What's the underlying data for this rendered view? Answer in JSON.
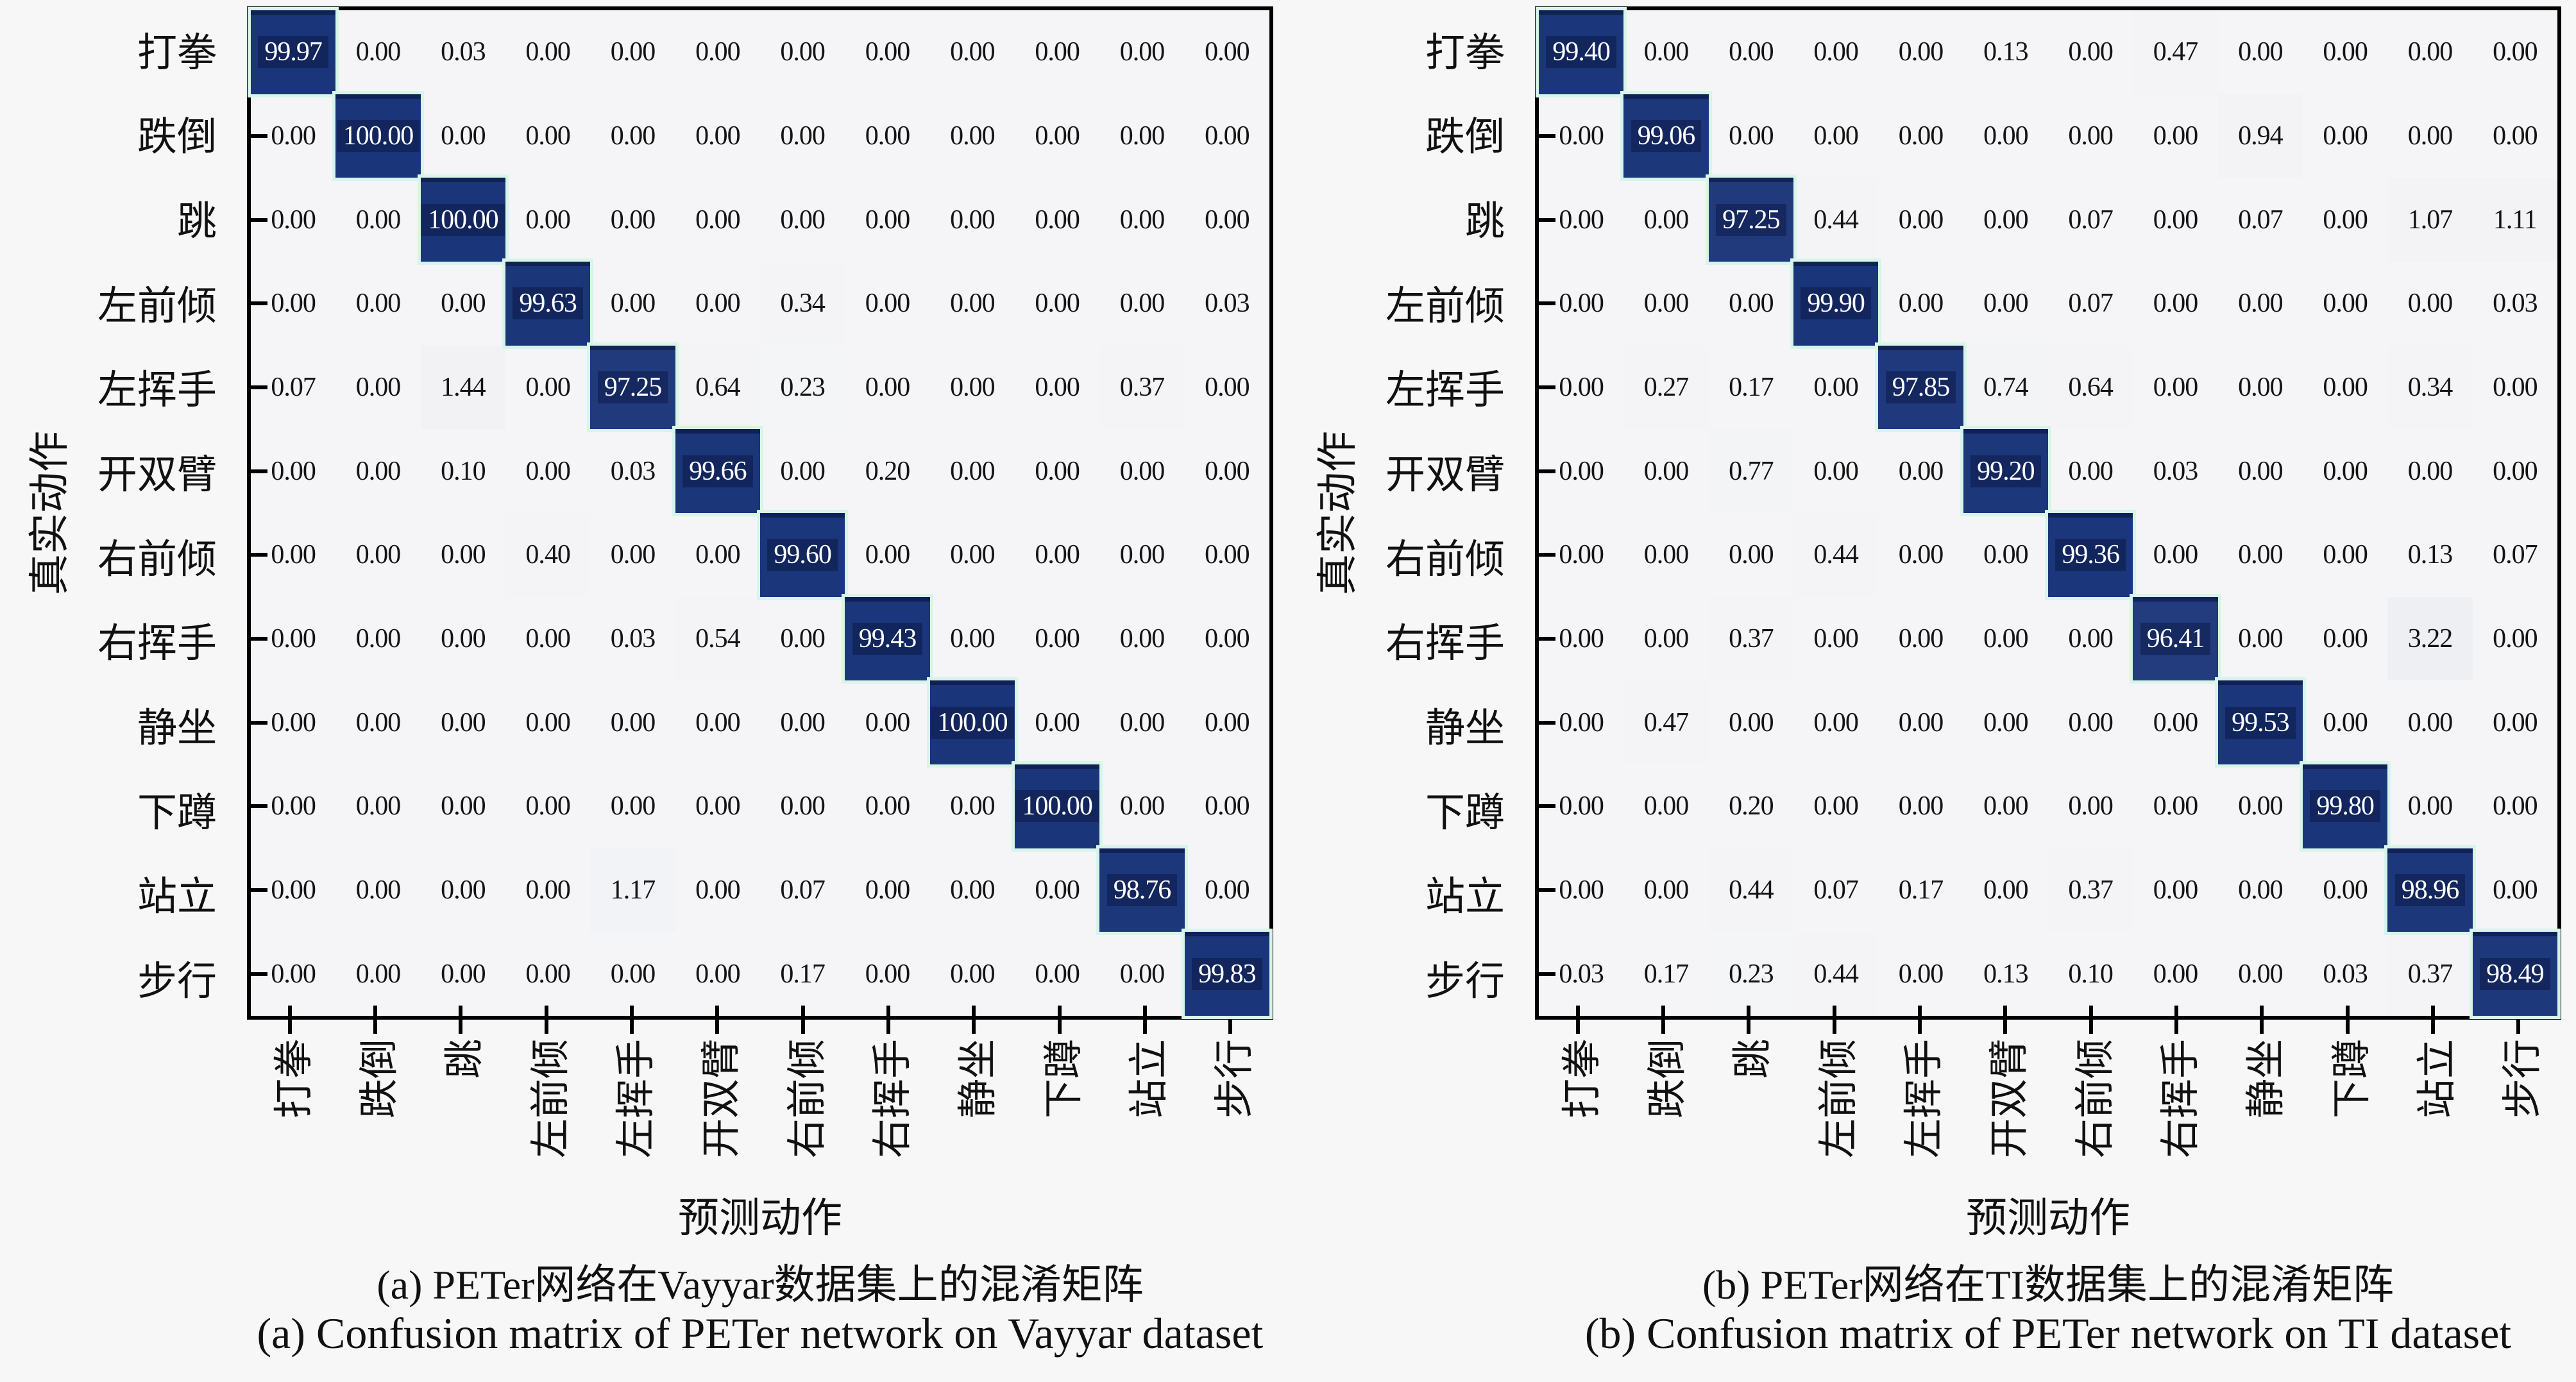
{
  "figure": {
    "type": "dual-confusion-matrix-figure",
    "background": "#f7f7f8"
  },
  "colors": {
    "diagonal_fill": "#1a3579",
    "diagonal_fill_rgb": [
      26,
      53,
      121
    ],
    "cell_background_rgb": [
      245,
      245,
      247
    ],
    "diagonal_halo": "#d7f5e9",
    "diagonal_text": "#ffffff",
    "offdiag_text": "#141414",
    "spine": "#000000"
  },
  "chart_data": [
    {
      "type": "heatmap",
      "title": "(a) PETer网络在Vayyar数据集上的混淆矩阵",
      "title_en": "(a) Confusion matrix of PETer network on Vayyar dataset",
      "xlabel": "预测动作",
      "ylabel": "真实动作",
      "legend": "none",
      "value_range": [
        0,
        100
      ],
      "categories_x": [
        "打拳",
        "跌倒",
        "跳",
        "左前倾",
        "左挥手",
        "开双臂",
        "右前倾",
        "右挥手",
        "静坐",
        "下蹲",
        "站立",
        "步行"
      ],
      "categories_y": [
        "打拳",
        "跌倒",
        "跳",
        "左前倾",
        "左挥手",
        "开双臂",
        "右前倾",
        "右挥手",
        "静坐",
        "下蹲",
        "站立",
        "步行"
      ],
      "values": [
        [
          99.97,
          0.0,
          0.03,
          0.0,
          0.0,
          0.0,
          0.0,
          0.0,
          0.0,
          0.0,
          0.0,
          0.0
        ],
        [
          0.0,
          100.0,
          0.0,
          0.0,
          0.0,
          0.0,
          0.0,
          0.0,
          0.0,
          0.0,
          0.0,
          0.0
        ],
        [
          0.0,
          0.0,
          100.0,
          0.0,
          0.0,
          0.0,
          0.0,
          0.0,
          0.0,
          0.0,
          0.0,
          0.0
        ],
        [
          0.0,
          0.0,
          0.0,
          99.63,
          0.0,
          0.0,
          0.34,
          0.0,
          0.0,
          0.0,
          0.0,
          0.03
        ],
        [
          0.07,
          0.0,
          1.44,
          0.0,
          97.25,
          0.64,
          0.23,
          0.0,
          0.0,
          0.0,
          0.37,
          0.0
        ],
        [
          0.0,
          0.0,
          0.1,
          0.0,
          0.03,
          99.66,
          0.0,
          0.2,
          0.0,
          0.0,
          0.0,
          0.0
        ],
        [
          0.0,
          0.0,
          0.0,
          0.4,
          0.0,
          0.0,
          99.6,
          0.0,
          0.0,
          0.0,
          0.0,
          0.0
        ],
        [
          0.0,
          0.0,
          0.0,
          0.0,
          0.03,
          0.54,
          0.0,
          99.43,
          0.0,
          0.0,
          0.0,
          0.0
        ],
        [
          0.0,
          0.0,
          0.0,
          0.0,
          0.0,
          0.0,
          0.0,
          0.0,
          100.0,
          0.0,
          0.0,
          0.0
        ],
        [
          0.0,
          0.0,
          0.0,
          0.0,
          0.0,
          0.0,
          0.0,
          0.0,
          0.0,
          100.0,
          0.0,
          0.0
        ],
        [
          0.0,
          0.0,
          0.0,
          0.0,
          1.17,
          0.0,
          0.07,
          0.0,
          0.0,
          0.0,
          98.76,
          0.0
        ],
        [
          0.0,
          0.0,
          0.0,
          0.0,
          0.0,
          0.0,
          0.17,
          0.0,
          0.0,
          0.0,
          0.0,
          99.83
        ]
      ]
    },
    {
      "type": "heatmap",
      "title": "(b) PETer网络在TI数据集上的混淆矩阵",
      "title_en": "(b) Confusion matrix of PETer network on TI dataset",
      "xlabel": "预测动作",
      "ylabel": "真实动作",
      "legend": "none",
      "value_range": [
        0,
        100
      ],
      "categories_x": [
        "打拳",
        "跌倒",
        "跳",
        "左前倾",
        "左挥手",
        "开双臂",
        "右前倾",
        "右挥手",
        "静坐",
        "下蹲",
        "站立",
        "步行"
      ],
      "categories_y": [
        "打拳",
        "跌倒",
        "跳",
        "左前倾",
        "左挥手",
        "开双臂",
        "右前倾",
        "右挥手",
        "静坐",
        "下蹲",
        "站立",
        "步行"
      ],
      "values": [
        [
          99.4,
          0.0,
          0.0,
          0.0,
          0.0,
          0.13,
          0.0,
          0.47,
          0.0,
          0.0,
          0.0,
          0.0
        ],
        [
          0.0,
          99.06,
          0.0,
          0.0,
          0.0,
          0.0,
          0.0,
          0.0,
          0.94,
          0.0,
          0.0,
          0.0
        ],
        [
          0.0,
          0.0,
          97.25,
          0.44,
          0.0,
          0.0,
          0.07,
          0.0,
          0.07,
          0.0,
          1.07,
          1.11
        ],
        [
          0.0,
          0.0,
          0.0,
          99.9,
          0.0,
          0.0,
          0.07,
          0.0,
          0.0,
          0.0,
          0.0,
          0.03
        ],
        [
          0.0,
          0.27,
          0.17,
          0.0,
          97.85,
          0.74,
          0.64,
          0.0,
          0.0,
          0.0,
          0.34,
          0.0
        ],
        [
          0.0,
          0.0,
          0.77,
          0.0,
          0.0,
          99.2,
          0.0,
          0.03,
          0.0,
          0.0,
          0.0,
          0.0
        ],
        [
          0.0,
          0.0,
          0.0,
          0.44,
          0.0,
          0.0,
          99.36,
          0.0,
          0.0,
          0.0,
          0.13,
          0.07
        ],
        [
          0.0,
          0.0,
          0.37,
          0.0,
          0.0,
          0.0,
          0.0,
          96.41,
          0.0,
          0.0,
          3.22,
          0.0
        ],
        [
          0.0,
          0.47,
          0.0,
          0.0,
          0.0,
          0.0,
          0.0,
          0.0,
          99.53,
          0.0,
          0.0,
          0.0
        ],
        [
          0.0,
          0.0,
          0.2,
          0.0,
          0.0,
          0.0,
          0.0,
          0.0,
          0.0,
          99.8,
          0.0,
          0.0
        ],
        [
          0.0,
          0.0,
          0.44,
          0.07,
          0.17,
          0.0,
          0.37,
          0.0,
          0.0,
          0.0,
          98.96,
          0.0
        ],
        [
          0.03,
          0.17,
          0.23,
          0.44,
          0.0,
          0.13,
          0.1,
          0.0,
          0.0,
          0.03,
          0.37,
          98.49
        ]
      ]
    }
  ]
}
